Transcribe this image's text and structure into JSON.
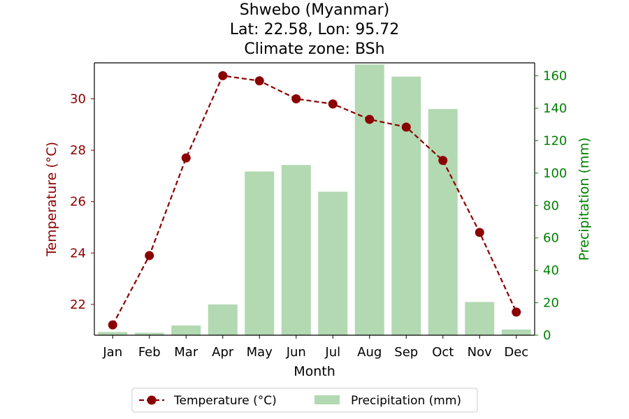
{
  "chart_data": {
    "type": "bar",
    "title_lines": [
      "Shwebo (Myanmar)",
      "Lat: 22.58, Lon: 95.72",
      "Climate zone: BSh"
    ],
    "xlabel": "Month",
    "ylabel_left": "Temperature (°C)",
    "ylabel_right": "Precipitation (mm)",
    "categories": [
      "Jan",
      "Feb",
      "Mar",
      "Apr",
      "May",
      "Jun",
      "Jul",
      "Aug",
      "Sep",
      "Oct",
      "Nov",
      "Dec"
    ],
    "series": [
      {
        "name": "Temperature (°C)",
        "type": "line",
        "axis": "left",
        "color": "#8b0000",
        "values": [
          21.2,
          23.9,
          27.7,
          30.9,
          30.7,
          30.0,
          29.8,
          29.2,
          28.9,
          27.6,
          24.8,
          21.7
        ]
      },
      {
        "name": "Precipitation (mm)",
        "type": "bar",
        "axis": "right",
        "color": "#b2d9b2",
        "values": [
          2,
          1.5,
          6,
          19,
          101,
          105,
          88.5,
          167,
          159.5,
          139.5,
          20.5,
          3.5
        ]
      }
    ],
    "ylim_left": [
      20.8,
      31.4
    ],
    "yticks_left": [
      22,
      24,
      26,
      28,
      30
    ],
    "ylim_right": [
      0,
      168
    ],
    "yticks_right": [
      0,
      20,
      40,
      60,
      80,
      100,
      120,
      140,
      160
    ],
    "left_axis_color": "#8b0000",
    "right_axis_color": "#008000",
    "legend_position": "bottom-center",
    "grid": false
  }
}
